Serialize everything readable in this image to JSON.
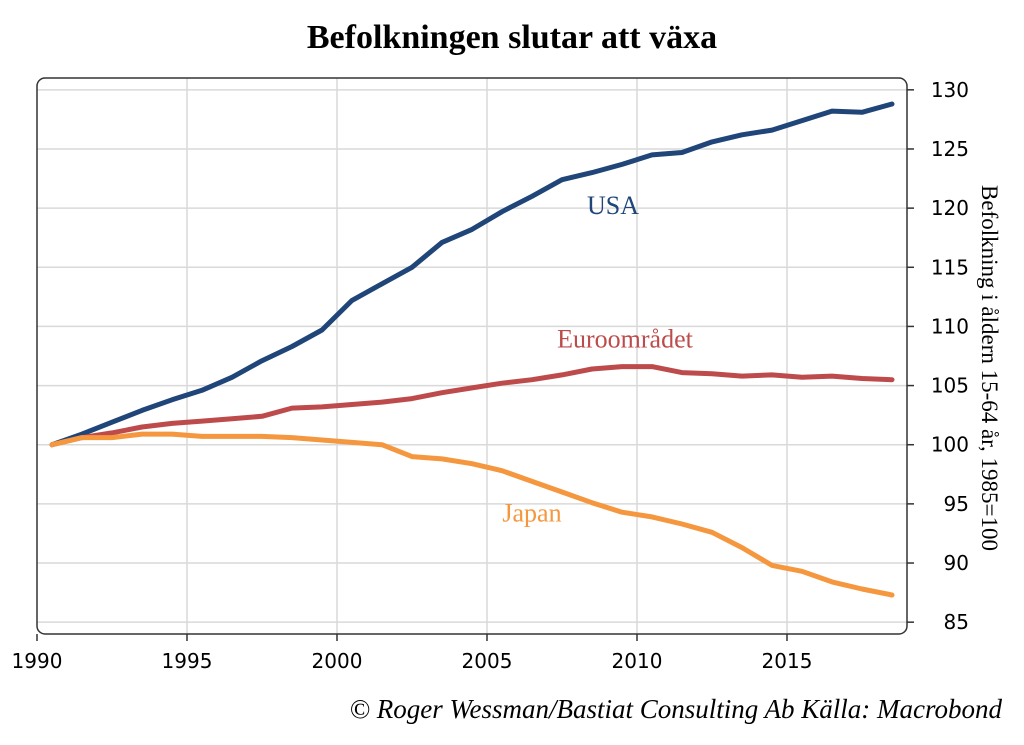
{
  "chart_data": {
    "type": "line",
    "title": "Befolkningen slutar att växa",
    "ylabel": "Befolkning i åldern 15-64 år, 1985=100",
    "xlabel": "",
    "xlim": [
      1990,
      2019
    ],
    "ylim": [
      84,
      131
    ],
    "xticks": [
      1990,
      1995,
      2000,
      2005,
      2010,
      2015
    ],
    "yticks": [
      85,
      90,
      95,
      100,
      105,
      110,
      115,
      120,
      125,
      130
    ],
    "grid": true,
    "axis_side": "right",
    "x": [
      1990.5,
      1991.5,
      1992.5,
      1993.5,
      1994.5,
      1995.5,
      1996.5,
      1997.5,
      1998.5,
      1999.5,
      2000.5,
      2001.5,
      2002.5,
      2003.5,
      2004.5,
      2005.5,
      2006.5,
      2007.5,
      2008.5,
      2009.5,
      2010.5,
      2011.5,
      2012.5,
      2013.5,
      2014.5,
      2015.5,
      2016.5,
      2017.5,
      2018.5
    ],
    "series": [
      {
        "name": "USA",
        "color": "#1f4579",
        "label_at": [
          2009.2,
          119.5
        ],
        "values": [
          100.0,
          100.9,
          101.9,
          102.9,
          103.8,
          104.6,
          105.7,
          107.1,
          108.3,
          109.7,
          112.2,
          113.6,
          115.0,
          117.1,
          118.2,
          119.7,
          121.0,
          122.4,
          123.0,
          123.7,
          124.5,
          124.7,
          125.6,
          126.2,
          126.6,
          127.4,
          128.2,
          128.1,
          128.8
        ]
      },
      {
        "name": "Euroområdet",
        "color": "#bd4b4b",
        "label_at": [
          2009.6,
          108.2
        ],
        "values": [
          100.0,
          100.6,
          101.0,
          101.5,
          101.8,
          102.0,
          102.2,
          102.4,
          103.1,
          103.2,
          103.4,
          103.6,
          103.9,
          104.4,
          104.8,
          105.2,
          105.5,
          105.9,
          106.4,
          106.6,
          106.6,
          106.1,
          106.0,
          105.8,
          105.9,
          105.7,
          105.8,
          105.6,
          105.5
        ]
      },
      {
        "name": "Japan",
        "color": "#f5973e",
        "label_at": [
          2006.5,
          93.5
        ],
        "values": [
          100.0,
          100.6,
          100.6,
          100.9,
          100.9,
          100.7,
          100.7,
          100.7,
          100.6,
          100.4,
          100.2,
          100.0,
          99.0,
          98.8,
          98.4,
          97.8,
          96.9,
          96.0,
          95.1,
          94.3,
          93.9,
          93.3,
          92.6,
          91.3,
          89.8,
          89.3,
          88.4,
          87.8,
          87.3
        ]
      }
    ]
  },
  "credit": "© Roger Wessman/Bastiat Consulting Ab   Källa: Macrobond"
}
